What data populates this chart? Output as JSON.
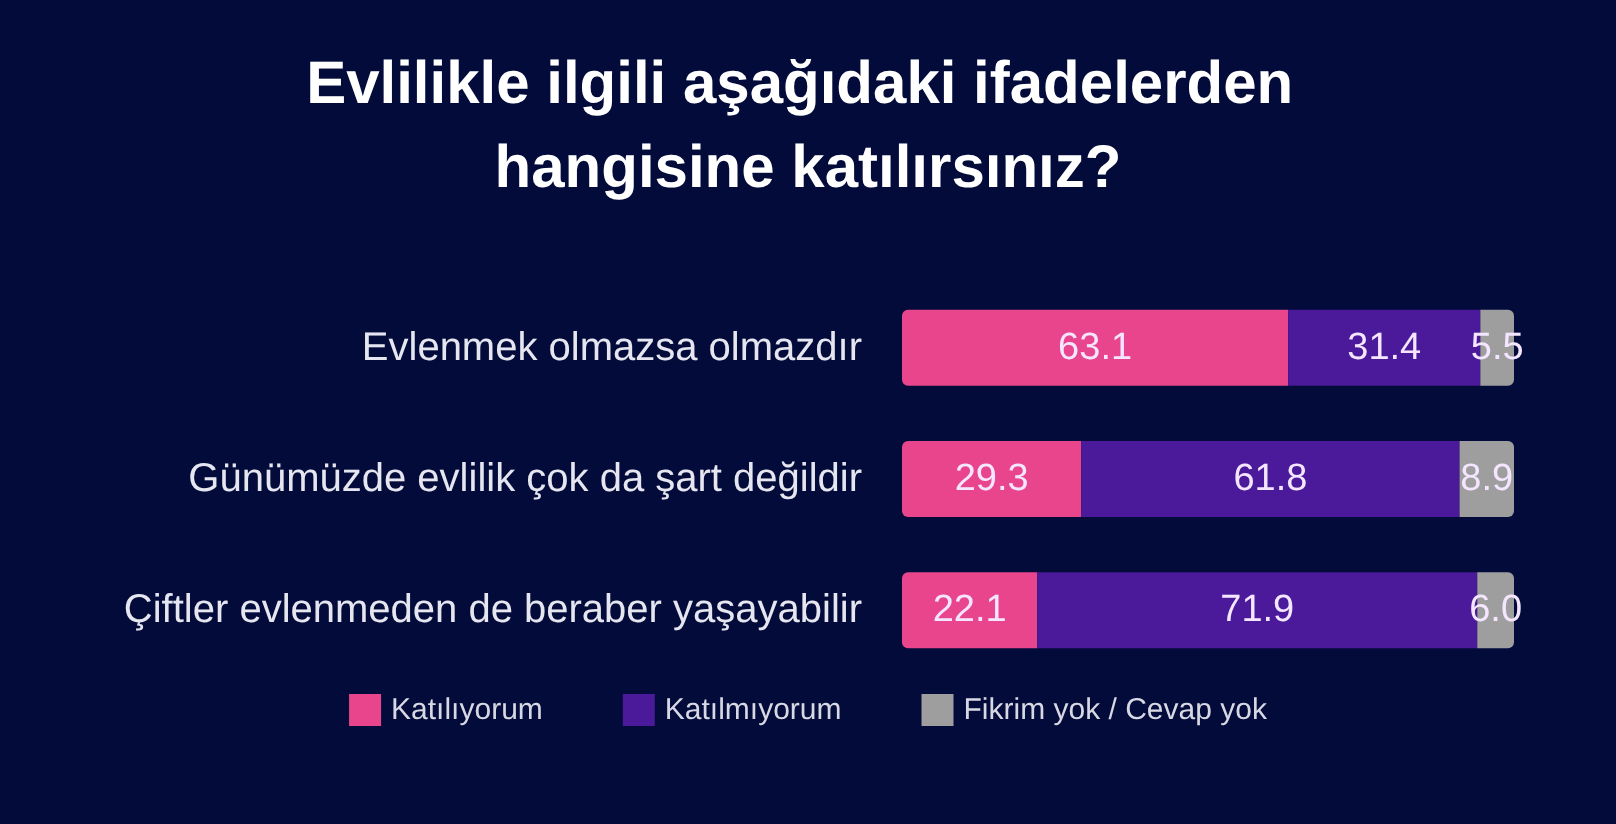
{
  "chart_data": {
    "type": "bar",
    "orientation": "horizontal",
    "stacked": true,
    "title": "Evlilikle ilgili aşağıdaki ifadelerden hangisine katılırsınız?",
    "categories": [
      "Evlenmek olmazsa olmazdır",
      "Günümüzde evlilik çok da şart değildir",
      "Çiftler evlenmeden de beraber yaşayabilir"
    ],
    "series": [
      {
        "name": "Katılıyorum",
        "color": "#e8458c",
        "values": [
          63.1,
          29.3,
          22.1
        ],
        "value_labels": [
          "63.1",
          "29.3",
          "22.1"
        ]
      },
      {
        "name": "Katılmıyorum",
        "color": "#4a1a9a",
        "values": [
          31.4,
          61.8,
          71.9
        ],
        "value_labels": [
          "31.4",
          "61.8",
          "71.9"
        ]
      },
      {
        "name": "Fikrim yok / Cevap yok",
        "color": "#9e9e9e",
        "values": [
          5.5,
          8.9,
          6.0
        ],
        "value_labels": [
          "5.5",
          "8.9",
          "6.0"
        ]
      }
    ],
    "legend": "bottom"
  }
}
